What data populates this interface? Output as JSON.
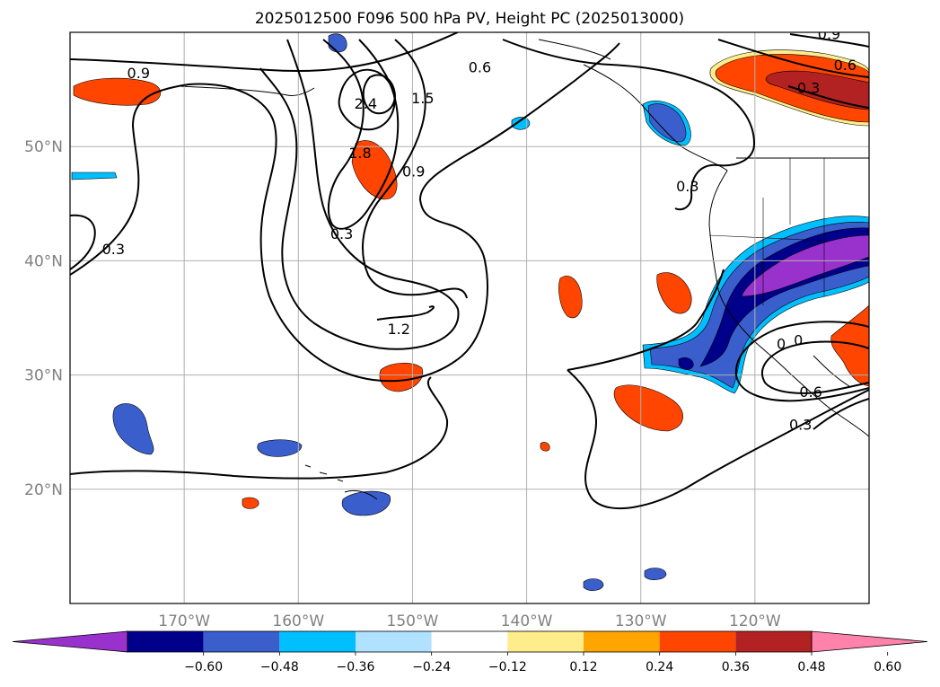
{
  "title": "2025012500 F096 500 hPa PV, Height PC (2025013000)",
  "map": {
    "lon_range": [
      -180,
      -110
    ],
    "lat_range": [
      10,
      60
    ],
    "grid_lons": [
      -170,
      -160,
      -150,
      -140,
      -130,
      -120
    ],
    "grid_lats": [
      20,
      30,
      40,
      50
    ],
    "lat_labels": [
      "20°N",
      "30°N",
      "40°N",
      "50°N"
    ],
    "lon_labels": [
      "170°W",
      "160°W",
      "150°W",
      "140°W",
      "130°W",
      "120°W"
    ],
    "contour_labels": [
      {
        "text": "0.9",
        "lon": -174.0,
        "lat": 56.0
      },
      {
        "text": "2.4",
        "lon": -154.1,
        "lat": 53.3
      },
      {
        "text": "1.5",
        "lon": -149.1,
        "lat": 53.8
      },
      {
        "text": "0.6",
        "lon": -144.1,
        "lat": 56.5
      },
      {
        "text": "1.8",
        "lon": -154.6,
        "lat": 49.0
      },
      {
        "text": "0.9",
        "lon": -149.9,
        "lat": 47.4
      },
      {
        "text": "0.3",
        "lon": -156.2,
        "lat": 41.9
      },
      {
        "text": "0.3",
        "lon": -176.2,
        "lat": 40.6
      },
      {
        "text": "1.2",
        "lon": -151.2,
        "lat": 33.6
      },
      {
        "text": "0.3",
        "lon": -125.9,
        "lat": 46.1
      },
      {
        "text": "0.9",
        "lon": -113.5,
        "lat": 59.4
      },
      {
        "text": "0.6",
        "lon": -112.1,
        "lat": 56.7
      },
      {
        "text": "0.3",
        "lon": -115.3,
        "lat": 54.7
      },
      {
        "text": "0",
        "lon": -117.7,
        "lat": 32.3
      },
      {
        "text": "0",
        "lon": -116.2,
        "lat": 32.6
      },
      {
        "text": "0.6",
        "lon": -115.1,
        "lat": 28.1
      },
      {
        "text": "0.3",
        "lon": -116.0,
        "lat": 25.2
      }
    ]
  },
  "colorbar": {
    "ticks": [
      "−0.60",
      "−0.48",
      "−0.36",
      "−0.24",
      "−0.12",
      "0.12",
      "0.24",
      "0.36",
      "0.48",
      "0.60"
    ],
    "colors": [
      "#9932cc",
      "#00008b",
      "#3a5fcd",
      "#00bfff",
      "#b0e2ff",
      "#ffffff",
      "#ffec8b",
      "#ffa500",
      "#ff4500",
      "#b22222",
      "#ff82ab"
    ]
  }
}
